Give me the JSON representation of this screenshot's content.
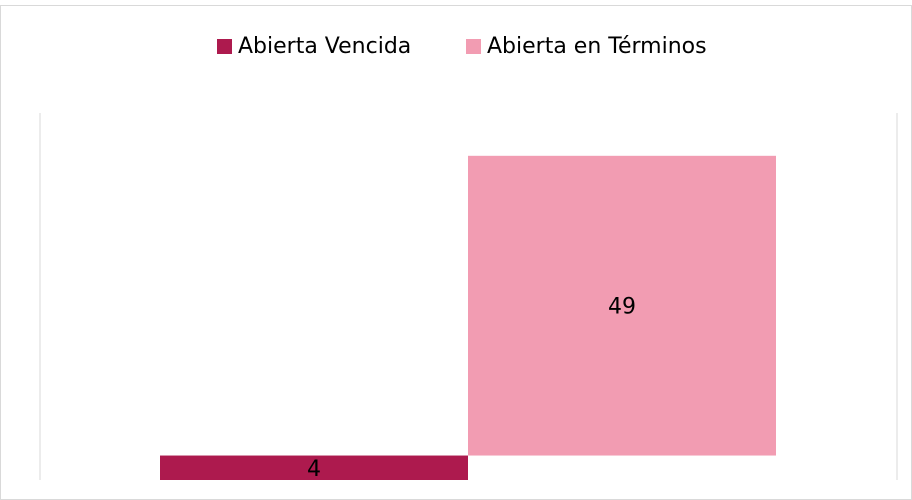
{
  "chart_data": {
    "type": "bar",
    "stacked": true,
    "series": [
      {
        "name": "Abierta Vencida",
        "color": "#ad1a4e",
        "values": [
          4
        ]
      },
      {
        "name": "Abierta en Términos",
        "color": "#f29cb2",
        "values": [
          49
        ]
      }
    ],
    "ylim": [
      0,
      60
    ],
    "legend": "top"
  }
}
